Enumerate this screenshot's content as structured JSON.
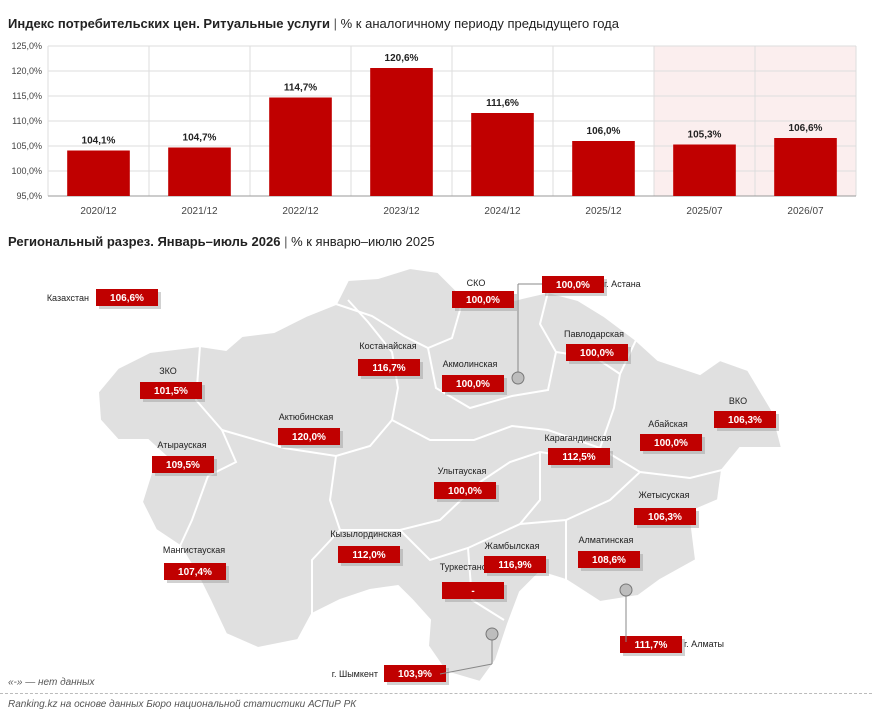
{
  "chart_title": {
    "bold": "Индекс потребительских цен. Ритуальные услуги",
    "sep": "|",
    "rest": "% к аналогичному периоду предыдущего года"
  },
  "region_title": {
    "bold": "Региональный разрез. Январь–июль 2026",
    "sep": "|",
    "rest": "% к январю–июлю 2025"
  },
  "chart_data": {
    "type": "bar",
    "categories": [
      "2020/12",
      "2021/12",
      "2022/12",
      "2023/12",
      "2024/12",
      "2025/12",
      "2025/07",
      "2026/07"
    ],
    "values": [
      104.1,
      104.7,
      114.7,
      120.6,
      111.6,
      106.0,
      105.3,
      106.6
    ],
    "data_labels": [
      "104,1%",
      "104,7%",
      "114,7%",
      "120,6%",
      "111,6%",
      "106,0%",
      "105,3%",
      "106,6%"
    ],
    "ylim": [
      95,
      125
    ],
    "yticks": [
      "95,0%",
      "100,0%",
      "105,0%",
      "110,0%",
      "115,0%",
      "120,0%",
      "125,0%"
    ],
    "highlight_from_index": 6,
    "grid": true,
    "bar_color": "#c00000",
    "highlight_bg": "#fbeeee"
  },
  "map": {
    "country": {
      "name": "Казахстан",
      "value": "106,6%"
    },
    "regions": [
      {
        "name": "СКО",
        "value": "100,0%"
      },
      {
        "name": "г. Астана",
        "value": "100,0%"
      },
      {
        "name": "Павлодарская",
        "value": "100,0%"
      },
      {
        "name": "ЗКО",
        "value": "101,5%"
      },
      {
        "name": "Костанайская",
        "value": "116,7%"
      },
      {
        "name": "Акмолинская",
        "value": "100,0%"
      },
      {
        "name": "Актюбинская",
        "value": "120,0%"
      },
      {
        "name": "ВКО",
        "value": "106,3%"
      },
      {
        "name": "Атырауская",
        "value": "109,5%"
      },
      {
        "name": "Карагандинская",
        "value": "112,5%"
      },
      {
        "name": "Абайская",
        "value": "100,0%"
      },
      {
        "name": "Улытауская",
        "value": "100,0%"
      },
      {
        "name": "Жетысуская",
        "value": "106,3%"
      },
      {
        "name": "Кызылординская",
        "value": "112,0%"
      },
      {
        "name": "Алматинская",
        "value": "108,6%"
      },
      {
        "name": "Жамбылская",
        "value": "116,9%"
      },
      {
        "name": "Мангистауская",
        "value": "107,4%"
      },
      {
        "name": "Туркестанская",
        "value": "-"
      },
      {
        "name": "г. Алматы",
        "value": "111,7%"
      },
      {
        "name": "г. Шымкент",
        "value": "103,9%"
      }
    ]
  },
  "footnote": "«-» — нет данных",
  "source": "Ranking.kz на основе данных Бюро национальной статистики АСПиР РК"
}
